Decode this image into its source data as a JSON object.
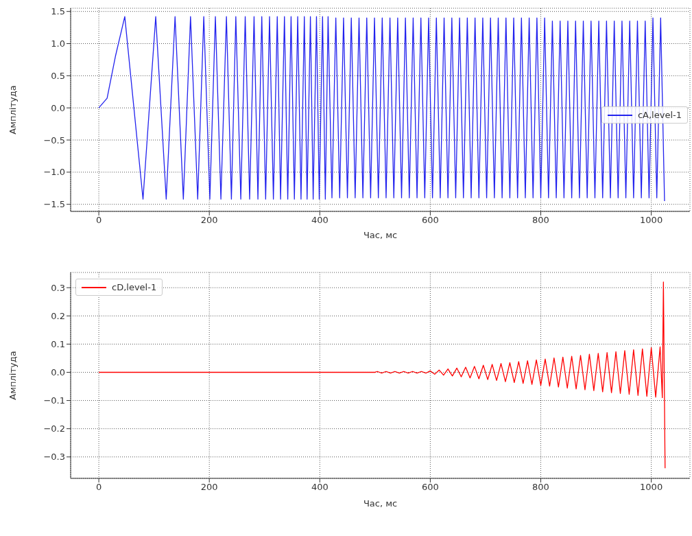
{
  "chart_data": [
    {
      "type": "line",
      "xlabel": "Час, мс",
      "ylabel": "Амплітуда",
      "xlim": [
        -51,
        1070
      ],
      "ylim": [
        -1.61,
        1.55
      ],
      "xticks": [
        0,
        200,
        400,
        600,
        800,
        1000
      ],
      "yticks": [
        {
          "value": -1.5,
          "label": "−1.5"
        },
        {
          "value": -1,
          "label": "−1.0"
        },
        {
          "value": -0.5,
          "label": "−0.5"
        },
        {
          "value": 0,
          "label": "0.0"
        },
        {
          "value": 0.5,
          "label": "0.5"
        },
        {
          "value": 1,
          "label": "1.0"
        },
        {
          "value": 1.5,
          "label": "1.5"
        }
      ],
      "grid": true,
      "legend": "right",
      "line_style": "solid",
      "series": [
        {
          "name": "cA,level-1",
          "color": "#2222ee",
          "x": [
            0,
            15,
            30,
            47,
            80,
            103,
            122,
            138,
            153,
            166,
            179,
            190,
            201,
            211,
            221,
            231,
            240,
            248,
            257,
            265,
            273,
            281,
            288,
            295,
            302,
            309,
            316,
            323,
            329,
            336,
            342,
            348,
            354,
            360,
            366,
            372,
            377,
            383,
            388,
            394,
            399,
            405,
            410,
            415,
            422,
            429,
            436,
            443,
            450,
            457,
            464,
            471,
            478,
            485,
            492,
            499,
            506,
            513,
            520,
            527,
            534,
            541,
            548,
            555,
            562,
            569,
            576,
            583,
            590,
            597,
            604,
            611,
            618,
            625,
            632,
            639,
            646,
            653,
            660,
            667,
            674,
            681,
            688,
            695,
            702,
            709,
            716,
            723,
            730,
            737,
            744,
            751,
            758,
            765,
            772,
            779,
            786,
            793,
            800,
            807,
            814,
            821,
            828,
            835,
            842,
            849,
            856,
            863,
            870,
            877,
            884,
            891,
            898,
            905,
            912,
            919,
            926,
            933,
            940,
            947,
            954,
            961,
            968,
            975,
            982,
            989,
            996,
            1003,
            1010,
            1017,
            1024
          ],
          "values": [
            0,
            0.15,
            0.8,
            1.42,
            -1.42,
            1.42,
            -1.42,
            1.42,
            -1.42,
            1.42,
            -1.42,
            1.42,
            -1.42,
            1.42,
            -1.42,
            1.42,
            -1.42,
            1.42,
            -1.42,
            1.42,
            -1.42,
            1.42,
            -1.42,
            1.42,
            -1.42,
            1.42,
            -1.42,
            1.42,
            -1.42,
            1.42,
            -1.42,
            1.42,
            -1.42,
            1.42,
            -1.42,
            1.42,
            -1.42,
            1.42,
            -1.42,
            1.42,
            -1.42,
            1.42,
            -1.42,
            1.42,
            -1.4,
            1.4,
            -1.4,
            1.4,
            -1.4,
            1.4,
            -1.4,
            1.4,
            -1.4,
            1.4,
            -1.4,
            1.4,
            -1.4,
            1.4,
            -1.4,
            1.4,
            -1.4,
            1.4,
            -1.4,
            1.4,
            -1.4,
            1.4,
            -1.4,
            1.4,
            -1.4,
            1.4,
            -1.4,
            1.4,
            -1.4,
            1.4,
            -1.4,
            1.4,
            -1.4,
            1.4,
            -1.4,
            1.4,
            -1.4,
            1.4,
            -1.4,
            1.4,
            -1.4,
            1.4,
            -1.4,
            1.4,
            -1.4,
            1.4,
            -1.4,
            1.4,
            -1.4,
            1.4,
            -1.4,
            1.4,
            -1.4,
            1.4,
            -1.4,
            1.4,
            -1.4,
            1.35,
            -1.4,
            1.35,
            -1.4,
            1.35,
            -1.4,
            1.35,
            -1.4,
            1.35,
            -1.4,
            1.35,
            -1.4,
            1.35,
            -1.4,
            1.35,
            -1.4,
            1.35,
            -1.4,
            1.35,
            -1.4,
            1.35,
            -1.4,
            1.35,
            -1.4,
            1.35,
            -1.4,
            1.4,
            -1.4,
            1.4,
            -1.45
          ]
        }
      ]
    },
    {
      "type": "line",
      "xlabel": "Час, мс",
      "ylabel": "Амплітуда",
      "xlim": [
        -51,
        1070
      ],
      "ylim": [
        -0.376,
        0.354
      ],
      "xticks": [
        0,
        200,
        400,
        600,
        800,
        1000
      ],
      "yticks": [
        {
          "value": -0.3,
          "label": "−0.3"
        },
        {
          "value": -0.2,
          "label": "−0.2"
        },
        {
          "value": -0.1,
          "label": "−0.1"
        },
        {
          "value": 0,
          "label": "0.0"
        },
        {
          "value": 0.1,
          "label": "0.1"
        },
        {
          "value": 0.2,
          "label": "0.2"
        },
        {
          "value": 0.3,
          "label": "0.3"
        }
      ],
      "grid": true,
      "legend": "top left",
      "line_style": "solid",
      "series": [
        {
          "name": "cD,level-1",
          "color": "#ff0000",
          "x": [
            0,
            500,
            504,
            512,
            520,
            528,
            536,
            544,
            552,
            560,
            568,
            576,
            584,
            592,
            600,
            608,
            616,
            624,
            632,
            640,
            648,
            656,
            664,
            672,
            680,
            688,
            696,
            704,
            712,
            720,
            728,
            736,
            744,
            752,
            760,
            768,
            776,
            784,
            792,
            800,
            808,
            816,
            824,
            832,
            840,
            848,
            856,
            864,
            872,
            880,
            888,
            896,
            904,
            912,
            920,
            928,
            936,
            944,
            952,
            960,
            968,
            976,
            984,
            992,
            1000,
            1008,
            1016,
            1020,
            1022,
            1025
          ],
          "values": [
            0,
            0,
            0.003,
            -0.003,
            0.003,
            -0.003,
            0.003,
            -0.003,
            0.003,
            -0.003,
            0.003,
            -0.003,
            0.003,
            -0.003,
            0.005,
            -0.007,
            0.008,
            -0.01,
            0.012,
            -0.013,
            0.015,
            -0.016,
            0.018,
            -0.02,
            0.021,
            -0.023,
            0.025,
            -0.026,
            0.028,
            -0.029,
            0.031,
            -0.033,
            0.034,
            -0.036,
            0.038,
            -0.039,
            0.041,
            -0.043,
            0.044,
            -0.046,
            0.047,
            -0.049,
            0.051,
            -0.052,
            0.054,
            -0.056,
            0.057,
            -0.059,
            0.06,
            -0.062,
            0.064,
            -0.065,
            0.067,
            -0.069,
            0.07,
            -0.072,
            0.073,
            -0.075,
            0.077,
            -0.078,
            0.08,
            -0.082,
            0.083,
            -0.085,
            0.087,
            -0.088,
            0.09,
            -0.09,
            0.32,
            -0.34
          ]
        }
      ]
    }
  ]
}
